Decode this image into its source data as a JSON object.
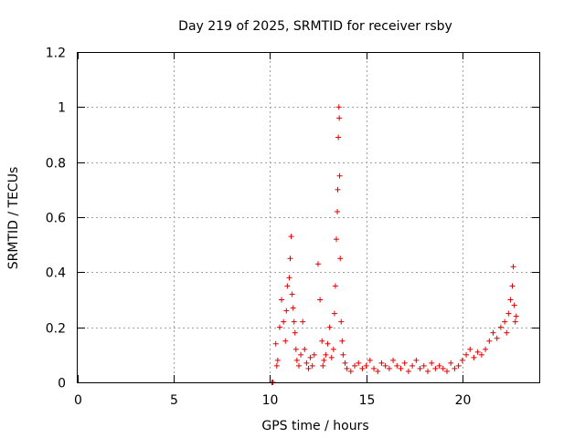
{
  "chart_data": {
    "type": "scatter",
    "title": "Day 219 of 2025, SRMTID for receiver rsby",
    "xlabel": "GPS time / hours",
    "ylabel": "SRMTID / TECUs",
    "xlim": [
      0,
      24
    ],
    "ylim": [
      0,
      1.2
    ],
    "x_ticks": [
      0,
      5,
      10,
      15,
      20
    ],
    "y_ticks": [
      0,
      0.2,
      0.4,
      0.6,
      0.8,
      1,
      1.2
    ],
    "x_tick_labels": [
      "0",
      "5",
      "10",
      "15",
      "20"
    ],
    "y_tick_labels": [
      "0",
      "0.2",
      "0.4",
      "0.6",
      "0.8",
      "1",
      "1.2"
    ],
    "grid": true,
    "marker": "+",
    "series": [
      {
        "name": "SRMTID",
        "color": "#e00000",
        "x": [
          10.1,
          10.15,
          10.3,
          10.35,
          10.4,
          10.5,
          10.6,
          10.7,
          10.8,
          10.85,
          10.9,
          11.0,
          11.05,
          11.1,
          11.15,
          11.2,
          11.25,
          11.3,
          11.35,
          11.4,
          11.5,
          11.6,
          11.7,
          11.8,
          11.9,
          12.0,
          12.1,
          12.2,
          12.3,
          12.5,
          12.6,
          12.7,
          12.75,
          12.8,
          12.9,
          13.0,
          13.1,
          13.2,
          13.3,
          13.35,
          13.4,
          13.45,
          13.5,
          13.52,
          13.55,
          13.58,
          13.6,
          13.62,
          13.65,
          13.7,
          13.75,
          13.8,
          13.9,
          14.0,
          14.2,
          14.4,
          14.6,
          14.8,
          15.0,
          15.2,
          15.4,
          15.6,
          15.8,
          16.0,
          16.2,
          16.4,
          16.6,
          16.8,
          17.0,
          17.2,
          17.4,
          17.6,
          17.8,
          18.0,
          18.2,
          18.4,
          18.6,
          18.8,
          19.0,
          19.2,
          19.4,
          19.6,
          19.8,
          20.0,
          20.2,
          20.4,
          20.6,
          20.8,
          21.0,
          21.2,
          21.4,
          21.6,
          21.8,
          22.0,
          22.2,
          22.3,
          22.4,
          22.5,
          22.6,
          22.65,
          22.7,
          22.75,
          22.8
        ],
        "y": [
          0.0,
          0.0,
          0.14,
          0.06,
          0.08,
          0.2,
          0.3,
          0.22,
          0.15,
          0.26,
          0.35,
          0.38,
          0.45,
          0.53,
          0.32,
          0.27,
          0.22,
          0.18,
          0.12,
          0.08,
          0.06,
          0.1,
          0.22,
          0.12,
          0.07,
          0.05,
          0.09,
          0.06,
          0.1,
          0.43,
          0.3,
          0.15,
          0.06,
          0.08,
          0.1,
          0.14,
          0.2,
          0.09,
          0.12,
          0.25,
          0.35,
          0.52,
          0.62,
          0.7,
          0.89,
          1.0,
          0.96,
          0.75,
          0.45,
          0.22,
          0.15,
          0.1,
          0.07,
          0.05,
          0.04,
          0.06,
          0.07,
          0.05,
          0.06,
          0.08,
          0.05,
          0.04,
          0.07,
          0.06,
          0.05,
          0.08,
          0.06,
          0.05,
          0.07,
          0.04,
          0.06,
          0.08,
          0.05,
          0.06,
          0.04,
          0.07,
          0.05,
          0.06,
          0.05,
          0.04,
          0.07,
          0.05,
          0.06,
          0.08,
          0.1,
          0.12,
          0.09,
          0.11,
          0.1,
          0.12,
          0.15,
          0.18,
          0.16,
          0.2,
          0.22,
          0.18,
          0.25,
          0.3,
          0.35,
          0.42,
          0.28,
          0.22,
          0.24
        ]
      }
    ]
  }
}
